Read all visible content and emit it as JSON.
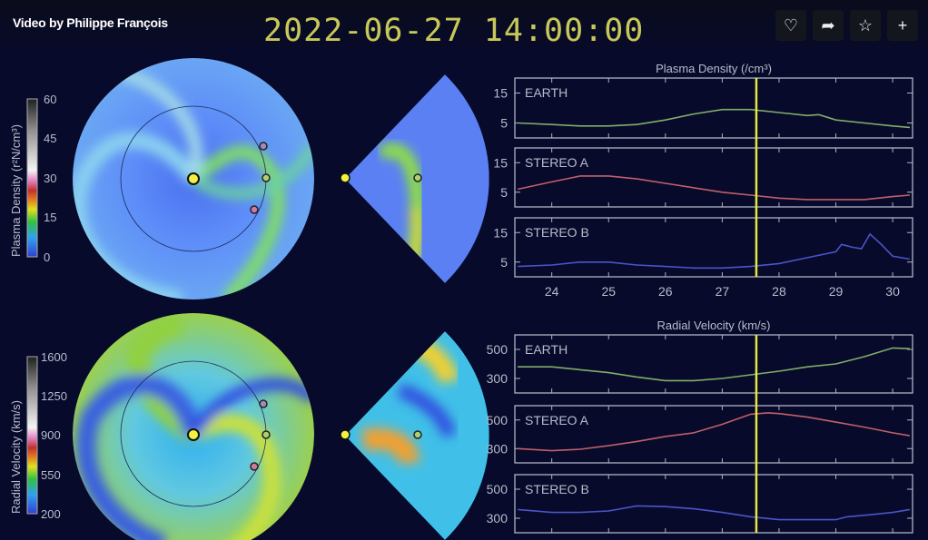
{
  "header": {
    "credit": "Video by Philippe François",
    "timestamp": "2022-06-27 14:00:00",
    "buttons": [
      {
        "name": "like",
        "icon": "heart-icon",
        "glyph": "♡"
      },
      {
        "name": "share",
        "icon": "share-arrow-icon",
        "glyph": "➦"
      },
      {
        "name": "favorite",
        "icon": "star-icon",
        "glyph": "☆"
      },
      {
        "name": "add",
        "icon": "plus-icon",
        "glyph": "+"
      }
    ]
  },
  "maps": {
    "density_colorbar": {
      "label": "Plasma Density (r²N/cm³)",
      "ticks": [
        "60",
        "45",
        "30",
        "15",
        "0"
      ]
    },
    "velocity_colorbar": {
      "label": "Radial Velocity (km/s)",
      "ticks": [
        "1600",
        "1250",
        "900",
        "550",
        "200"
      ]
    }
  },
  "colors": {
    "earth": "#7fae6a",
    "stereo_a": "#c0606a",
    "stereo_b": "#4a55c8",
    "time_marker": "#e6e640",
    "timestamp": "#c8c85a"
  },
  "chart_data": [
    {
      "type": "line",
      "title": "Plasma Density (/cm³)",
      "xlim": [
        23.35,
        30.35
      ],
      "xticks": [
        "24",
        "25",
        "26",
        "27",
        "28",
        "29",
        "30"
      ],
      "ylim": [
        0,
        20
      ],
      "yticks": [
        "15",
        "5"
      ],
      "current_time": 27.6,
      "series": [
        {
          "name": "EARTH",
          "x": [
            23.4,
            24,
            24.5,
            25,
            25.5,
            26,
            26.5,
            27,
            27.5,
            28,
            28.5,
            28.7,
            29,
            29.5,
            30,
            30.3
          ],
          "y": [
            5,
            4.5,
            4,
            4,
            4.5,
            6,
            8,
            9.5,
            9.5,
            8.5,
            7.5,
            7.8,
            6,
            5,
            4,
            3.5
          ]
        },
        {
          "name": "STEREO A",
          "x": [
            23.4,
            24,
            24.5,
            25,
            25.5,
            26,
            26.5,
            27,
            27.5,
            28,
            28.5,
            29,
            29.5,
            30,
            30.3
          ],
          "y": [
            6,
            8.5,
            10.5,
            10.5,
            9.5,
            8,
            6.5,
            5,
            4,
            3,
            2.5,
            2.5,
            2.5,
            3.5,
            4
          ]
        },
        {
          "name": "STEREO B",
          "x": [
            23.4,
            24,
            24.5,
            25,
            25.5,
            26,
            26.5,
            27,
            27.5,
            28,
            28.5,
            29,
            29.1,
            29.3,
            29.45,
            29.6,
            29.8,
            30,
            30.3
          ],
          "y": [
            3.5,
            4,
            5,
            5,
            4,
            3.5,
            3,
            3,
            3.5,
            4.5,
            6.5,
            8.5,
            11,
            10,
            9.5,
            14.5,
            11,
            7,
            6
          ]
        }
      ]
    },
    {
      "type": "line",
      "title": "Radial Velocity (km/s)",
      "xlim": [
        23.35,
        30.35
      ],
      "ylim": [
        200,
        600
      ],
      "yticks": [
        "500",
        "300"
      ],
      "current_time": 27.6,
      "series": [
        {
          "name": "EARTH",
          "x": [
            23.4,
            24,
            24.5,
            25,
            25.5,
            26,
            26.5,
            27,
            27.5,
            28,
            28.5,
            29,
            29.5,
            30,
            30.3
          ],
          "y": [
            380,
            380,
            360,
            340,
            310,
            285,
            285,
            300,
            325,
            350,
            380,
            400,
            450,
            510,
            505
          ]
        },
        {
          "name": "STEREO A",
          "x": [
            23.4,
            24,
            24.5,
            25,
            25.5,
            26,
            26.5,
            27,
            27.5,
            27.8,
            28,
            28.5,
            29,
            29.5,
            30,
            30.3
          ],
          "y": [
            300,
            285,
            295,
            320,
            350,
            385,
            410,
            470,
            540,
            550,
            545,
            520,
            485,
            450,
            410,
            390
          ]
        },
        {
          "name": "STEREO B",
          "x": [
            23.4,
            24,
            24.5,
            25,
            25.5,
            26,
            26.5,
            27,
            27.5,
            28,
            28.5,
            29,
            29.2,
            29.5,
            30,
            30.3
          ],
          "y": [
            360,
            340,
            340,
            350,
            385,
            380,
            365,
            340,
            310,
            290,
            290,
            290,
            310,
            320,
            340,
            360
          ]
        }
      ]
    }
  ]
}
